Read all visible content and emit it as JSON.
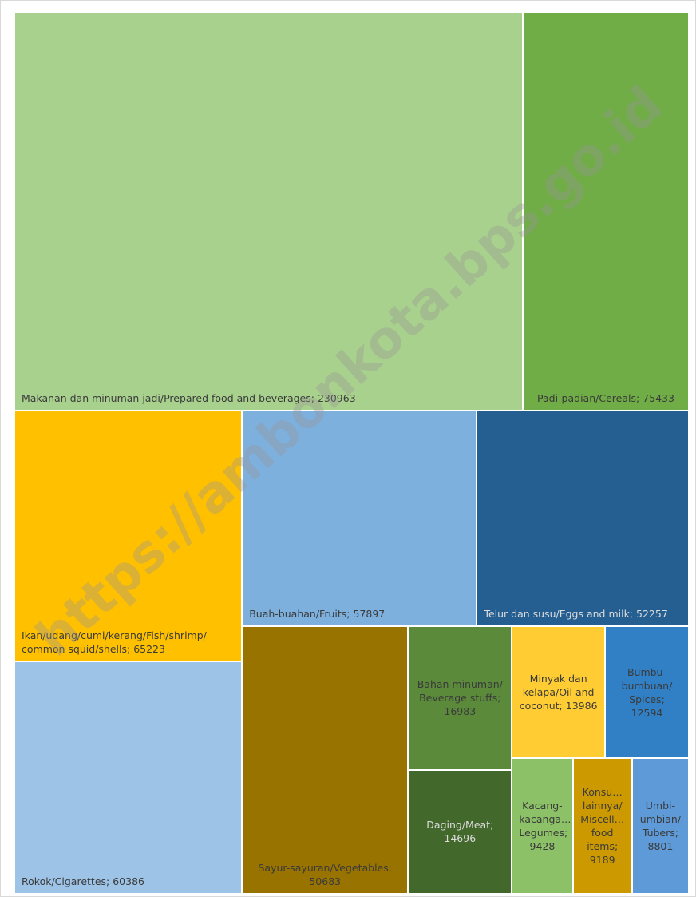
{
  "chart_data": {
    "type": "treemap",
    "categories": [
      "Makanan dan minuman jadi/Prepared food and beverages;",
      "Padi-padian/Cereals;",
      "Ikan/udang/cumi/kerang/Fish/shrimp/ common squid/shells;",
      "Rokok/Cigarettes;",
      "Buah-buahan/Fruits;",
      "Telur dan susu/Eggs and milk;",
      "Sayur-sayuran/Vegetables;",
      "Bahan minuman/ Beverage stuffs;",
      "Daging/Meat;",
      "Minyak dan kelapa/Oil and coconut;",
      "Bumbu-bumbuan/ Spices;",
      "Kacang-kacanga… Legumes;",
      "Konsu… lainnya/ Miscell… food items;",
      "Umbi-umbian/ Tubers;"
    ],
    "values": [
      230963,
      75433,
      65223,
      60386,
      57897,
      52257,
      50683,
      16983,
      14696,
      13986,
      12594,
      9428,
      9189,
      8801
    ],
    "colors": [
      "#a9d18e",
      "#70ad47",
      "#ffc000",
      "#9dc3e6",
      "#7eb0de",
      "#255e91",
      "#997300",
      "#5b8a3b",
      "#43682b",
      "#ffcd33",
      "#3180c6",
      "#8cc168",
      "#cc9a00",
      "#5e9ad7"
    ],
    "watermark": "https://ambonkota.bps.go.id"
  }
}
